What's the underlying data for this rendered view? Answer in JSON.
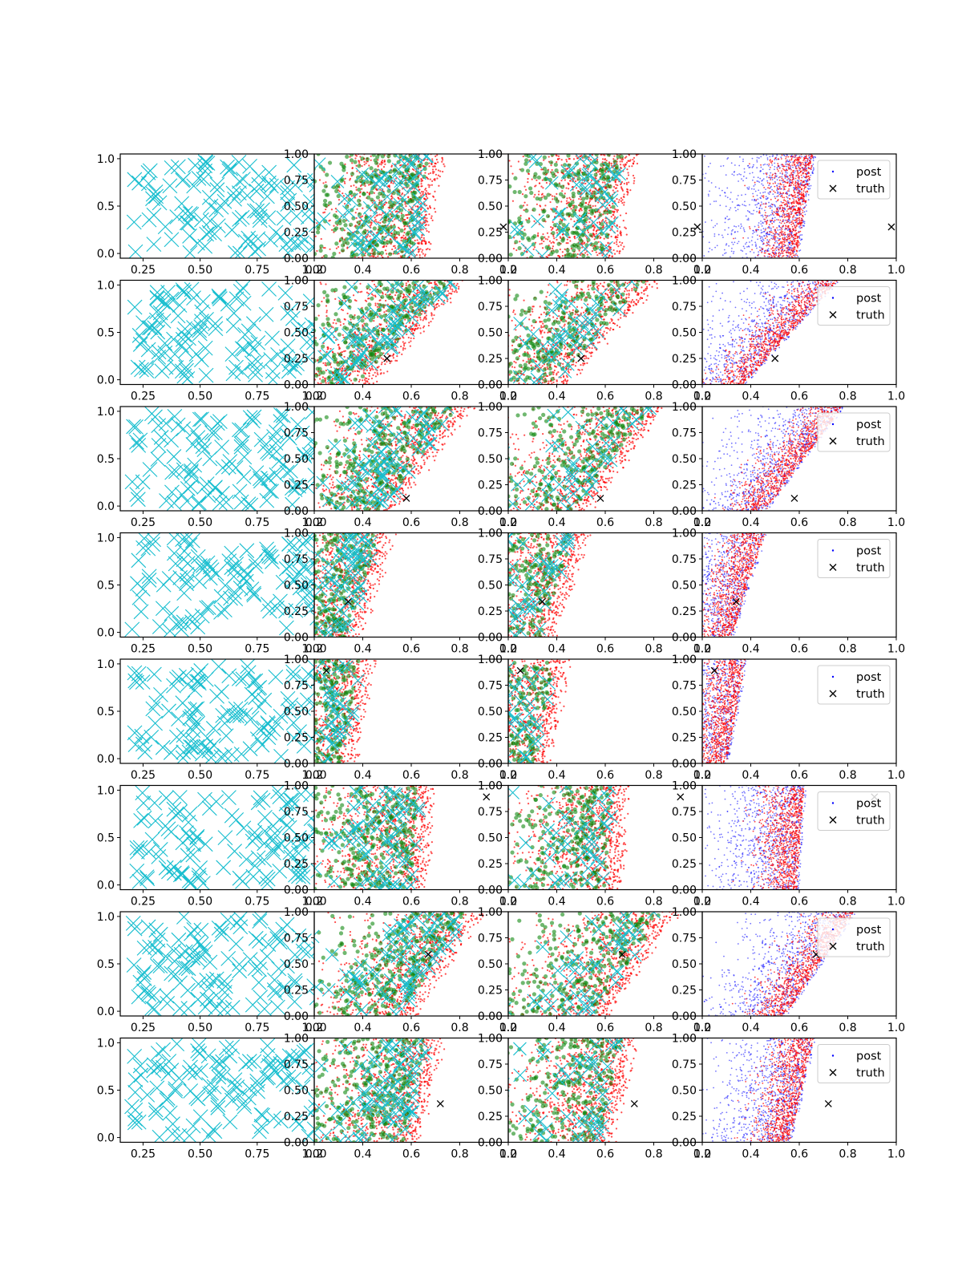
{
  "figure": {
    "rows": 8,
    "columns": 4,
    "colors": {
      "grid_marks": "#17becf",
      "green": "#118811",
      "red": "#ff0000",
      "blue": "#0000ff",
      "truth": "#000000",
      "axes": "#000000"
    }
  },
  "chart_data": {
    "type": "scatter",
    "grid": false,
    "legend_placement": "upper right (4th column panels)",
    "legend_entries": [
      "post",
      "truth"
    ],
    "column_axes": [
      {
        "column": 1,
        "xlim": [
          0.15,
          1.0
        ],
        "ylim": [
          -0.05,
          1.05
        ],
        "xticks": [
          "0.25",
          "0.50",
          "0.75",
          "1.00"
        ],
        "yticks": [
          "0.0",
          "0.5",
          "1.0"
        ]
      },
      {
        "column": 2,
        "xlim": [
          0.2,
          1.0
        ],
        "ylim": [
          0.0,
          1.0
        ],
        "xticks": [
          "0.2",
          "0.4",
          "0.6",
          "0.8",
          "1.0"
        ],
        "yticks": [
          "0.00",
          "0.25",
          "0.50",
          "0.75",
          "1.00"
        ]
      },
      {
        "column": 3,
        "xlim": [
          0.2,
          1.0
        ],
        "ylim": [
          0.0,
          1.0
        ],
        "xticks": [
          "0.2",
          "0.4",
          "0.6",
          "0.8",
          "1.0"
        ],
        "yticks": [
          "0.00",
          "0.25",
          "0.50",
          "0.75",
          "1.00"
        ]
      },
      {
        "column": 4,
        "xlim": [
          0.2,
          1.0
        ],
        "ylim": [
          0.0,
          1.0
        ],
        "xticks": [
          "0.2",
          "0.4",
          "0.6",
          "0.8",
          "1.0"
        ],
        "yticks": [
          "0.00",
          "0.25",
          "0.50",
          "0.75",
          "1.00"
        ]
      }
    ],
    "panels_rows": [
      {
        "row": 1,
        "truth": [
          0.98,
          0.3
        ],
        "post_region": {
          "x_at_y0": 0.55,
          "x_at_y1": 0.62
        }
      },
      {
        "row": 2,
        "truth": [
          0.5,
          0.25
        ],
        "post_region": {
          "x_at_y0": 0.33,
          "x_at_y1": 0.72
        }
      },
      {
        "row": 3,
        "truth": [
          0.58,
          0.12
        ],
        "post_region": {
          "x_at_y0": 0.42,
          "x_at_y1": 0.74
        }
      },
      {
        "row": 4,
        "truth": [
          0.34,
          0.34
        ],
        "post_region": {
          "x_at_y0": 0.28,
          "x_at_y1": 0.42
        }
      },
      {
        "row": 5,
        "truth": [
          0.25,
          0.89
        ],
        "post_region": {
          "x_at_y0": 0.26,
          "x_at_y1": 0.34
        }
      },
      {
        "row": 6,
        "truth": [
          0.91,
          0.89
        ],
        "post_region": {
          "x_at_y0": 0.55,
          "x_at_y1": 0.58
        }
      },
      {
        "row": 7,
        "truth": [
          0.67,
          0.59
        ],
        "post_region": {
          "x_at_y0": 0.5,
          "x_at_y1": 0.79
        }
      },
      {
        "row": 8,
        "truth": [
          0.72,
          0.37
        ],
        "post_region": {
          "x_at_y0": 0.52,
          "x_at_y1": 0.62
        }
      }
    ]
  }
}
